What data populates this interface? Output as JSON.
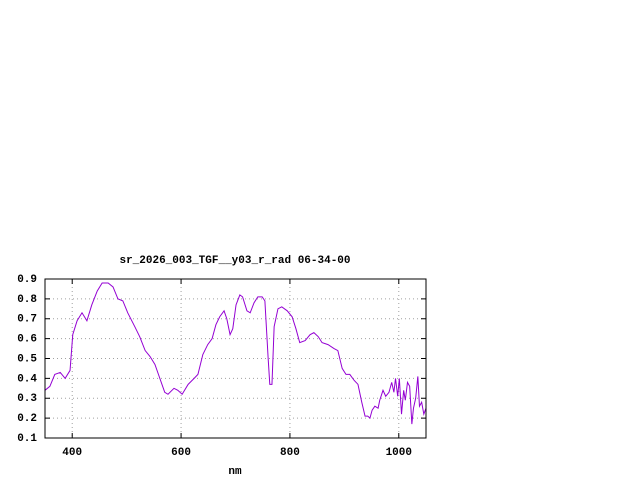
{
  "chart_data": {
    "type": "line",
    "title": "sr_2026_003_TGF__y03_r_rad 06-34-00",
    "x_label": "nm",
    "xlim": [
      350,
      1050
    ],
    "xticks": [
      400,
      600,
      800,
      1000
    ],
    "ylim": [
      0.1,
      0.9
    ],
    "yticks": [
      0.1,
      0.2,
      0.3,
      0.4,
      0.5,
      0.6,
      0.7,
      0.8,
      0.9
    ],
    "grid": true,
    "series": [
      {
        "color": "#9400d3",
        "x": [
          350,
          359,
          368,
          378,
          387,
          396,
          401,
          409,
          418,
          427,
          436,
          446,
          455,
          466,
          475,
          484,
          493,
          502,
          515,
          524,
          534,
          543,
          552,
          561,
          570,
          576,
          587,
          594,
          602,
          613,
          624,
          631,
          640,
          649,
          657,
          664,
          671,
          679,
          684,
          690,
          695,
          701,
          708,
          713,
          721,
          727,
          734,
          741,
          749,
          754,
          760,
          763,
          767,
          771,
          778,
          785,
          795,
          804,
          811,
          818,
          828,
          837,
          844,
          852,
          859,
          870,
          881,
          888,
          896,
          903,
          910,
          918,
          925,
          932,
          938,
          943,
          947,
          951,
          956,
          962,
          965,
          971,
          976,
          982,
          987,
          991,
          994,
          998,
          1001,
          1005,
          1009,
          1012,
          1016,
          1020,
          1024,
          1027,
          1031,
          1035,
          1038,
          1042,
          1046,
          1050
        ],
        "values": [
          0.34,
          0.36,
          0.42,
          0.43,
          0.4,
          0.44,
          0.62,
          0.69,
          0.73,
          0.69,
          0.77,
          0.84,
          0.88,
          0.88,
          0.86,
          0.8,
          0.79,
          0.73,
          0.66,
          0.61,
          0.54,
          0.51,
          0.47,
          0.4,
          0.33,
          0.32,
          0.35,
          0.34,
          0.32,
          0.37,
          0.4,
          0.42,
          0.52,
          0.57,
          0.6,
          0.67,
          0.71,
          0.74,
          0.7,
          0.62,
          0.65,
          0.77,
          0.82,
          0.81,
          0.74,
          0.73,
          0.78,
          0.81,
          0.81,
          0.79,
          0.5,
          0.37,
          0.37,
          0.66,
          0.75,
          0.76,
          0.74,
          0.71,
          0.65,
          0.58,
          0.59,
          0.62,
          0.63,
          0.61,
          0.58,
          0.57,
          0.55,
          0.54,
          0.45,
          0.42,
          0.42,
          0.39,
          0.37,
          0.28,
          0.21,
          0.21,
          0.2,
          0.24,
          0.26,
          0.25,
          0.29,
          0.34,
          0.31,
          0.33,
          0.38,
          0.33,
          0.4,
          0.31,
          0.4,
          0.22,
          0.34,
          0.29,
          0.38,
          0.36,
          0.17,
          0.25,
          0.3,
          0.41,
          0.26,
          0.28,
          0.22,
          0.25
        ]
      }
    ]
  }
}
